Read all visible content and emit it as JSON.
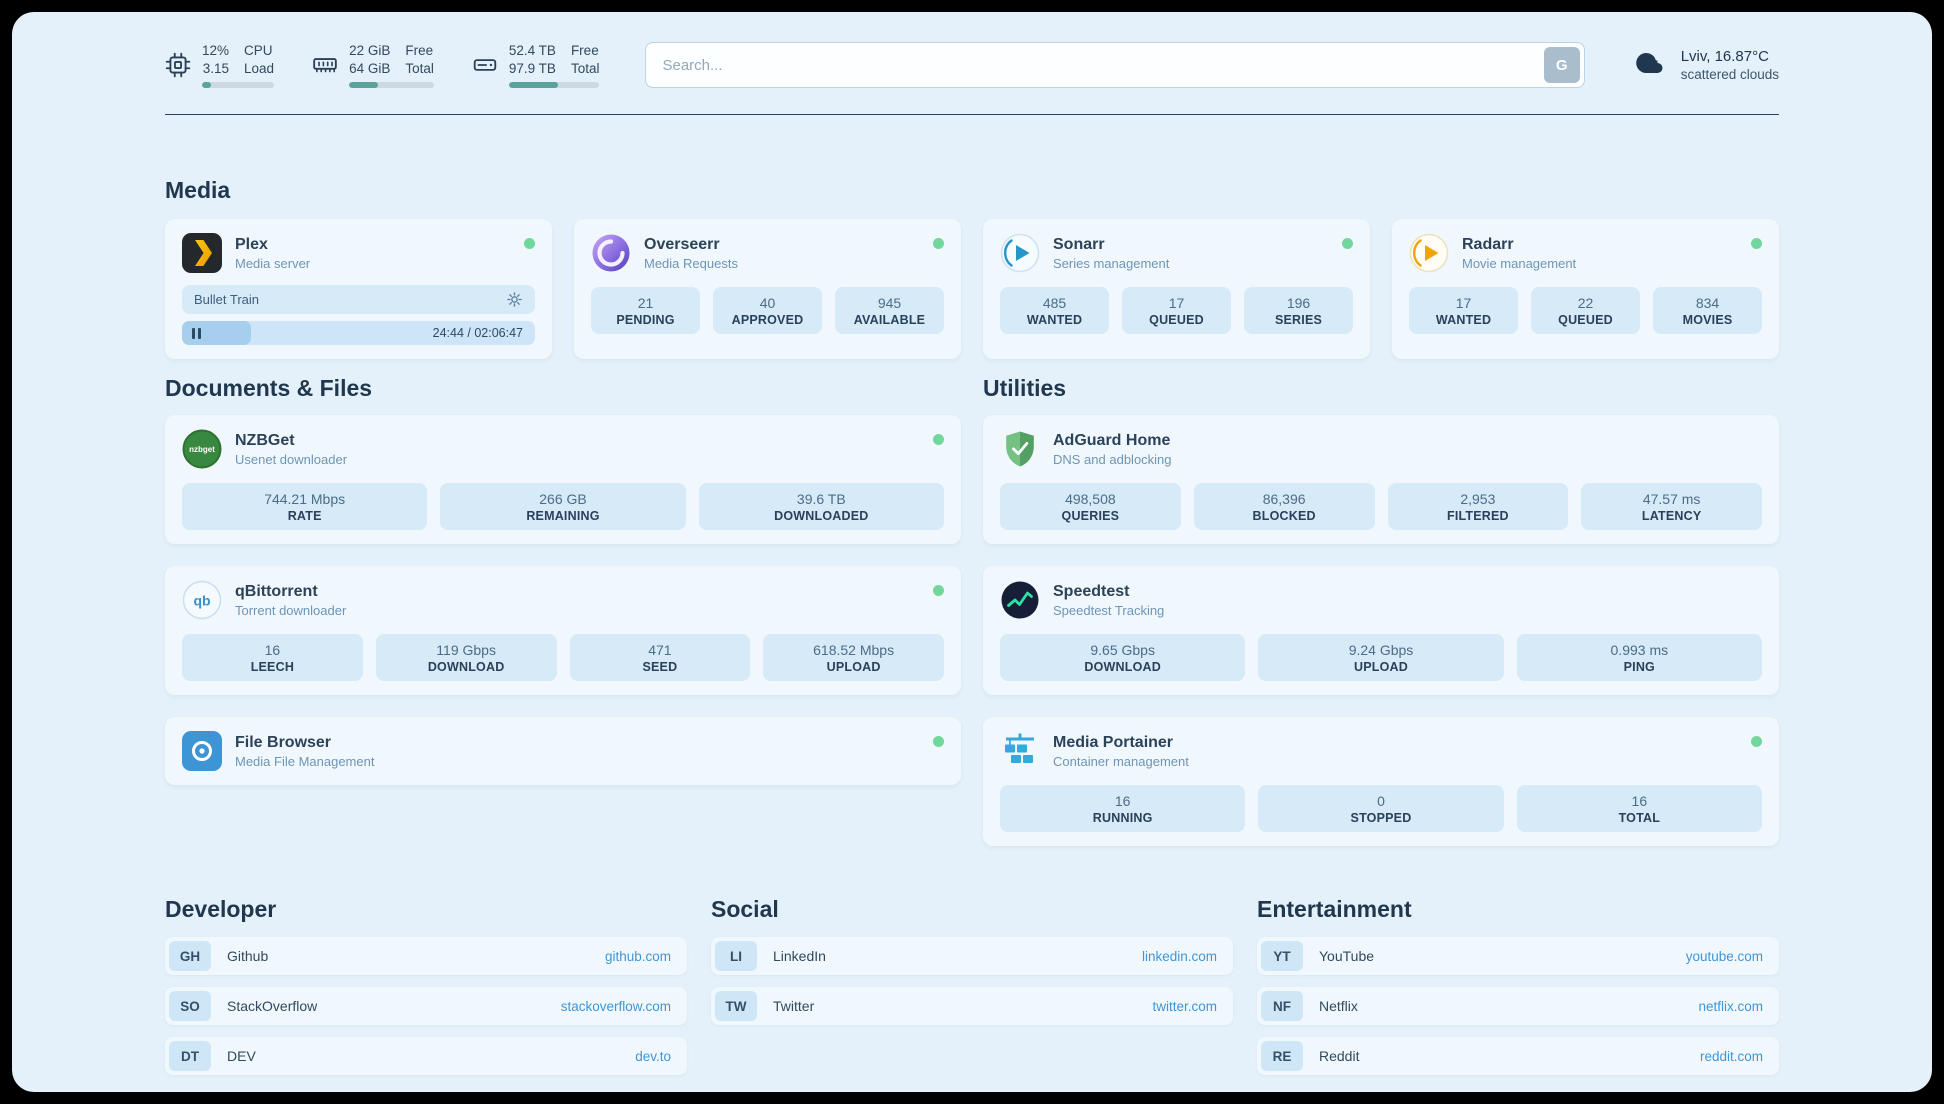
{
  "colors": {
    "frame_bg": "#000000",
    "panel_bg": "#e4f1fa",
    "card_bg": "#f0f8fd",
    "stat_box_bg": "#d6eaf8",
    "link_accent": "#3e96d8",
    "status_online": "#72d79c",
    "heading_text": "#21374e",
    "monitor_bar_fill": "#5aa39b"
  },
  "topbar": {
    "monitors": [
      {
        "icon": "cpu-icon",
        "value1": "12%",
        "label1": "CPU",
        "value2": "3.15",
        "label2": "Load",
        "progress": 12
      },
      {
        "icon": "ram-icon",
        "value1": "22 GiB",
        "label1": "Free",
        "value2": "64 GiB",
        "label2": "Total",
        "progress": 34
      },
      {
        "icon": "disk-icon",
        "value1": "52.4 TB",
        "label1": "Free",
        "value2": "97.9 TB",
        "label2": "Total",
        "progress": 54
      }
    ],
    "search": {
      "placeholder": "Search...",
      "button_label": "G"
    },
    "weather": {
      "icon": "cloud-icon",
      "location": "Lviv, 16.87°C",
      "condition": "scattered clouds"
    }
  },
  "sections": {
    "media": "Media",
    "documents": "Documents & Files",
    "utilities": "Utilities",
    "developer": "Developer",
    "social": "Social",
    "entertainment": "Entertainment"
  },
  "apps": {
    "plex": {
      "name": "Plex",
      "subtitle": "Media server",
      "status": "online",
      "now_playing": {
        "title": "Bullet Train",
        "elapsed": "24:44",
        "total": "02:06:47",
        "time_display": "24:44 / 02:06:47",
        "progress_percent": 19.6
      }
    },
    "overseerr": {
      "name": "Overseerr",
      "subtitle": "Media Requests",
      "status": "online",
      "stats": [
        {
          "value": "21",
          "label": "PENDING"
        },
        {
          "value": "40",
          "label": "APPROVED"
        },
        {
          "value": "945",
          "label": "AVAILABLE"
        }
      ]
    },
    "sonarr": {
      "name": "Sonarr",
      "subtitle": "Series management",
      "status": "online",
      "stats": [
        {
          "value": "485",
          "label": "WANTED"
        },
        {
          "value": "17",
          "label": "QUEUED"
        },
        {
          "value": "196",
          "label": "SERIES"
        }
      ]
    },
    "radarr": {
      "name": "Radarr",
      "subtitle": "Movie management",
      "status": "online",
      "stats": [
        {
          "value": "17",
          "label": "WANTED"
        },
        {
          "value": "22",
          "label": "QUEUED"
        },
        {
          "value": "834",
          "label": "MOVIES"
        }
      ]
    },
    "nzbget": {
      "name": "NZBGet",
      "subtitle": "Usenet downloader",
      "status": "online",
      "stats": [
        {
          "value": "744.21 Mbps",
          "label": "RATE"
        },
        {
          "value": "266 GB",
          "label": "REMAINING"
        },
        {
          "value": "39.6 TB",
          "label": "DOWNLOADED"
        }
      ]
    },
    "qbittorrent": {
      "name": "qBittorrent",
      "subtitle": "Torrent downloader",
      "status": "online",
      "stats": [
        {
          "value": "16",
          "label": "LEECH"
        },
        {
          "value": "119 Gbps",
          "label": "DOWNLOAD"
        },
        {
          "value": "471",
          "label": "SEED"
        },
        {
          "value": "618.52 Mbps",
          "label": "UPLOAD"
        }
      ]
    },
    "filebrowser": {
      "name": "File Browser",
      "subtitle": "Media File Management",
      "status": "online"
    },
    "adguard": {
      "name": "AdGuard Home",
      "subtitle": "DNS and adblocking",
      "stats": [
        {
          "value": "498,508",
          "label": "QUERIES"
        },
        {
          "value": "86,396",
          "label": "BLOCKED"
        },
        {
          "value": "2,953",
          "label": "FILTERED"
        },
        {
          "value": "47.57 ms",
          "label": "LATENCY"
        }
      ]
    },
    "speedtest": {
      "name": "Speedtest",
      "subtitle": "Speedtest Tracking",
      "stats": [
        {
          "value": "9.65 Gbps",
          "label": "DOWNLOAD"
        },
        {
          "value": "9.24 Gbps",
          "label": "UPLOAD"
        },
        {
          "value": "0.993 ms",
          "label": "PING"
        }
      ]
    },
    "portainer": {
      "name": "Media Portainer",
      "subtitle": "Container management",
      "status": "online",
      "stats": [
        {
          "value": "16",
          "label": "RUNNING"
        },
        {
          "value": "0",
          "label": "STOPPED"
        },
        {
          "value": "16",
          "label": "TOTAL"
        }
      ]
    }
  },
  "bookmarks": {
    "developer": [
      {
        "badge": "GH",
        "name": "Github",
        "url": "github.com"
      },
      {
        "badge": "SO",
        "name": "StackOverflow",
        "url": "stackoverflow.com"
      },
      {
        "badge": "DT",
        "name": "DEV",
        "url": "dev.to"
      }
    ],
    "social": [
      {
        "badge": "LI",
        "name": "LinkedIn",
        "url": "linkedin.com"
      },
      {
        "badge": "TW",
        "name": "Twitter",
        "url": "twitter.com"
      }
    ],
    "entertainment": [
      {
        "badge": "YT",
        "name": "YouTube",
        "url": "youtube.com"
      },
      {
        "badge": "NF",
        "name": "Netflix",
        "url": "netflix.com"
      },
      {
        "badge": "RE",
        "name": "Reddit",
        "url": "reddit.com"
      }
    ]
  },
  "icons": {
    "nzbget_text": "nzbget",
    "qbittorrent_text": "qb"
  }
}
